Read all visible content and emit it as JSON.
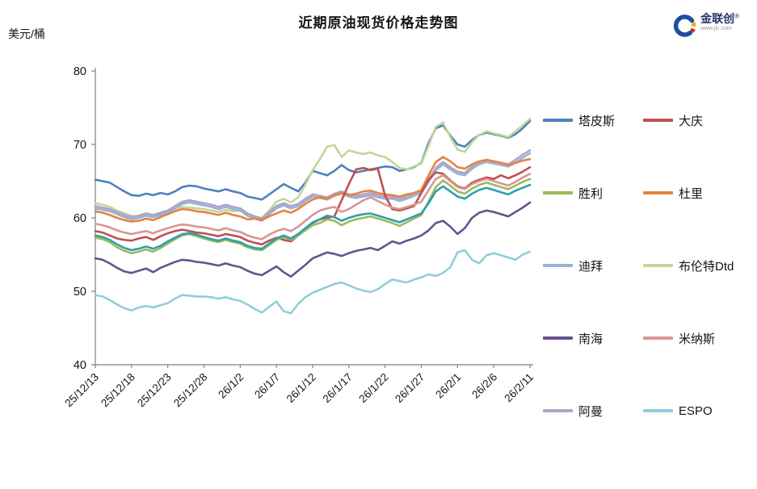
{
  "title": "近期原油现货价格走势图",
  "y_unit": "美元/桶",
  "logo": {
    "brand": "金联创",
    "reg": "®",
    "url": "www.jlc.com"
  },
  "chart_data": {
    "type": "line",
    "title": "近期原油现货价格走势图",
    "ylabel": "美元/桶",
    "ylim": [
      40,
      80
    ],
    "y_ticks": [
      80,
      70,
      60,
      50,
      40
    ],
    "grid": false,
    "legend_position": "right",
    "x_tick_labels": [
      "25/12/13",
      "25/12/18",
      "25/12/23",
      "25/12/28",
      "26/1/2",
      "26/1/7",
      "26/1/12",
      "26/1/17",
      "26/1/22",
      "26/1/27",
      "26/2/1",
      "26/2/6",
      "26/2/11"
    ],
    "x_tick_interval_days": 5,
    "x_daily_points": 61,
    "legend": [
      "塔皮斯",
      "大庆",
      "胜利",
      "杜里",
      "迪拜",
      "布伦特Dtd",
      "南海",
      "米纳斯",
      "阿曼",
      "ESPO"
    ],
    "series": [
      {
        "id": "tapis",
        "name": "塔皮斯",
        "color": "#4F81BD",
        "in_legend": true,
        "values": [
          65.2,
          65.0,
          64.8,
          64.2,
          63.6,
          63.1,
          63.0,
          63.3,
          63.1,
          63.4,
          63.2,
          63.6,
          64.2,
          64.4,
          64.3,
          64.0,
          63.8,
          63.6,
          63.9,
          63.6,
          63.4,
          62.9,
          62.7,
          62.5,
          63.2,
          63.9,
          64.6,
          64.1,
          63.6,
          64.8,
          66.4,
          66.1,
          65.8,
          66.4,
          67.2,
          66.5,
          66.2,
          66.4,
          66.6,
          66.8,
          67.0,
          66.9,
          66.4,
          66.6,
          66.9,
          67.5,
          70.2,
          72.2,
          72.6,
          71.2,
          70.0,
          69.7,
          70.6,
          71.3,
          71.6,
          71.4,
          71.2,
          70.9,
          71.4,
          72.2,
          73.2
        ]
      },
      {
        "id": "brent-dtd",
        "name": "布伦特Dtd",
        "color": "#C3D69B",
        "in_legend": true,
        "values": [
          62.0,
          61.8,
          61.5,
          61.0,
          60.6,
          60.3,
          60.2,
          60.4,
          60.3,
          60.6,
          60.9,
          61.2,
          61.5,
          61.4,
          61.3,
          61.2,
          61.0,
          60.8,
          61.1,
          60.9,
          61.0,
          60.5,
          60.2,
          60.0,
          61.0,
          62.2,
          62.6,
          62.1,
          62.8,
          64.5,
          66.5,
          68.0,
          69.7,
          69.9,
          68.3,
          69.2,
          68.9,
          68.7,
          68.9,
          68.5,
          68.3,
          67.6,
          66.8,
          66.6,
          67.0,
          67.4,
          69.8,
          72.4,
          73.0,
          71.0,
          69.3,
          69.0,
          70.3,
          71.3,
          71.8,
          71.5,
          71.3,
          71.0,
          71.8,
          72.6,
          73.5
        ]
      },
      {
        "id": "oman",
        "name": "阿曼",
        "color": "#B3A2C7",
        "in_legend": true,
        "values": [
          61.6,
          61.4,
          61.2,
          60.8,
          60.4,
          60.1,
          60.3,
          60.6,
          60.4,
          60.7,
          61.0,
          61.6,
          62.2,
          62.4,
          62.2,
          62.0,
          61.8,
          61.5,
          61.8,
          61.5,
          61.3,
          60.6,
          60.2,
          59.9,
          60.8,
          61.6,
          62.0,
          61.6,
          61.9,
          62.6,
          63.2,
          63.0,
          62.8,
          63.3,
          63.6,
          63.2,
          63.0,
          63.2,
          63.4,
          63.1,
          62.9,
          62.9,
          62.6,
          62.9,
          63.3,
          63.7,
          65.2,
          66.8,
          67.6,
          66.9,
          66.3,
          66.1,
          67.0,
          67.6,
          67.9,
          67.7,
          67.5,
          67.3,
          67.9,
          68.6,
          69.2
        ]
      },
      {
        "id": "dubai",
        "name": "迪拜",
        "color": "#95B3D7",
        "in_legend": true,
        "values": [
          61.3,
          61.1,
          60.9,
          60.5,
          60.1,
          59.8,
          60.0,
          60.3,
          60.1,
          60.4,
          60.7,
          61.3,
          61.9,
          62.1,
          61.9,
          61.7,
          61.5,
          61.2,
          61.5,
          61.2,
          61.0,
          60.3,
          59.9,
          59.6,
          60.5,
          61.3,
          61.7,
          61.3,
          61.6,
          62.3,
          62.9,
          62.7,
          62.5,
          63.0,
          63.3,
          62.9,
          62.7,
          62.9,
          63.1,
          62.8,
          62.6,
          62.6,
          62.3,
          62.6,
          63.0,
          63.4,
          64.9,
          66.5,
          67.3,
          66.6,
          66.0,
          65.8,
          66.7,
          67.3,
          67.6,
          67.4,
          67.2,
          67.0,
          67.5,
          68.2,
          68.8
        ]
      },
      {
        "id": "duri",
        "name": "杜里",
        "color": "#E8823E",
        "in_legend": true,
        "values": [
          60.9,
          60.7,
          60.4,
          60.0,
          59.7,
          59.5,
          59.6,
          59.9,
          59.7,
          60.1,
          60.5,
          60.9,
          61.2,
          61.1,
          60.9,
          60.8,
          60.6,
          60.4,
          60.7,
          60.4,
          60.2,
          59.8,
          59.9,
          59.7,
          60.2,
          60.6,
          61.0,
          60.7,
          61.2,
          61.9,
          62.5,
          62.8,
          62.6,
          63.1,
          63.4,
          63.1,
          63.3,
          63.6,
          63.7,
          63.4,
          63.2,
          63.1,
          62.9,
          63.2,
          63.4,
          63.8,
          65.8,
          67.6,
          68.3,
          67.7,
          66.9,
          66.7,
          67.3,
          67.7,
          67.9,
          67.7,
          67.5,
          67.2,
          67.5,
          67.8,
          68.0
        ]
      },
      {
        "id": "daqing",
        "name": "大庆",
        "color": "#C0504D",
        "in_legend": true,
        "values": [
          58.2,
          58.0,
          57.6,
          57.2,
          57.0,
          56.9,
          57.2,
          57.4,
          57.0,
          57.5,
          57.9,
          58.2,
          58.4,
          58.2,
          58.0,
          57.9,
          57.7,
          57.5,
          57.8,
          57.6,
          57.4,
          56.9,
          56.6,
          56.4,
          56.9,
          57.3,
          57.0,
          56.8,
          57.6,
          58.4,
          59.3,
          59.8,
          60.0,
          60.2,
          62.4,
          64.6,
          66.6,
          66.8,
          66.5,
          66.7,
          63.0,
          61.2,
          61.0,
          61.3,
          61.6,
          63.4,
          65.2,
          66.2,
          66.0,
          65.1,
          64.3,
          64.0,
          64.8,
          65.2,
          65.5,
          65.3,
          65.8,
          65.4,
          65.8,
          66.3,
          66.9
        ]
      },
      {
        "id": "minas",
        "name": "米纳斯",
        "color": "#D99694",
        "in_legend": true,
        "values": [
          59.2,
          59.0,
          58.7,
          58.3,
          58.0,
          57.8,
          58.0,
          58.2,
          57.9,
          58.3,
          58.6,
          58.9,
          59.1,
          59.0,
          58.8,
          58.7,
          58.5,
          58.3,
          58.6,
          58.3,
          58.1,
          57.6,
          57.3,
          57.1,
          57.7,
          58.2,
          58.5,
          58.2,
          58.8,
          59.6,
          60.4,
          61.0,
          61.3,
          61.5,
          60.8,
          61.2,
          61.8,
          62.4,
          62.8,
          62.3,
          61.8,
          61.4,
          61.2,
          61.5,
          61.8,
          62.2,
          63.8,
          65.3,
          65.8,
          65.0,
          64.2,
          63.9,
          64.6,
          65.0,
          65.3,
          65.0,
          64.7,
          64.4,
          64.9,
          65.5,
          66.0
        ]
      },
      {
        "id": "shengli",
        "name": "胜利",
        "color": "#9BBB59",
        "in_legend": true,
        "values": [
          57.3,
          57.1,
          56.7,
          56.0,
          55.5,
          55.2,
          55.4,
          55.7,
          55.4,
          55.9,
          56.5,
          57.1,
          57.6,
          57.8,
          57.5,
          57.2,
          56.9,
          56.7,
          57.0,
          56.7,
          56.5,
          56.0,
          55.7,
          55.6,
          56.3,
          57.0,
          57.4,
          57.0,
          57.6,
          58.3,
          59.0,
          59.3,
          59.8,
          59.6,
          59.0,
          59.5,
          59.8,
          60.0,
          60.2,
          59.9,
          59.6,
          59.3,
          58.9,
          59.4,
          59.9,
          60.4,
          62.2,
          64.2,
          65.1,
          64.4,
          63.6,
          63.3,
          64.0,
          64.5,
          64.8,
          64.5,
          64.2,
          63.9,
          64.4,
          64.9,
          65.3
        ]
      },
      {
        "id": "unlabeled-teal",
        "name": "",
        "color": "#2E9FB0",
        "in_legend": false,
        "values": [
          57.6,
          57.4,
          57.0,
          56.4,
          55.9,
          55.6,
          55.8,
          56.1,
          55.8,
          56.2,
          56.8,
          57.3,
          57.8,
          57.9,
          57.7,
          57.4,
          57.1,
          56.9,
          57.2,
          56.9,
          56.7,
          56.2,
          55.9,
          55.8,
          56.5,
          57.2,
          57.6,
          57.2,
          57.8,
          58.6,
          59.4,
          59.8,
          60.3,
          60.1,
          59.6,
          60.0,
          60.3,
          60.5,
          60.6,
          60.3,
          60.0,
          59.7,
          59.4,
          59.8,
          60.2,
          60.6,
          62.0,
          63.6,
          64.3,
          63.6,
          62.9,
          62.6,
          63.3,
          63.8,
          64.1,
          63.8,
          63.5,
          63.2,
          63.7,
          64.1,
          64.5
        ]
      },
      {
        "id": "nanhai",
        "name": "南海",
        "color": "#69518F",
        "in_legend": true,
        "values": [
          54.5,
          54.3,
          53.8,
          53.2,
          52.7,
          52.5,
          52.8,
          53.1,
          52.6,
          53.2,
          53.6,
          54.0,
          54.3,
          54.2,
          54.0,
          53.9,
          53.7,
          53.5,
          53.8,
          53.5,
          53.3,
          52.8,
          52.4,
          52.2,
          52.8,
          53.4,
          52.6,
          52.0,
          52.8,
          53.6,
          54.5,
          54.9,
          55.3,
          55.1,
          54.8,
          55.2,
          55.5,
          55.7,
          55.9,
          55.6,
          56.2,
          56.8,
          56.5,
          56.9,
          57.2,
          57.6,
          58.3,
          59.3,
          59.6,
          58.8,
          57.8,
          58.6,
          60.0,
          60.7,
          61.0,
          60.8,
          60.5,
          60.2,
          60.8,
          61.4,
          62.1
        ]
      },
      {
        "id": "espo",
        "name": "ESPO",
        "color": "#92CDDC",
        "in_legend": true,
        "values": [
          49.5,
          49.3,
          48.8,
          48.2,
          47.7,
          47.4,
          47.8,
          48.0,
          47.8,
          48.1,
          48.4,
          49.0,
          49.5,
          49.4,
          49.3,
          49.3,
          49.2,
          49.0,
          49.2,
          48.9,
          48.7,
          48.2,
          47.6,
          47.1,
          47.9,
          48.6,
          47.3,
          47.0,
          48.3,
          49.2,
          49.8,
          50.2,
          50.6,
          51.0,
          51.2,
          50.8,
          50.4,
          50.1,
          49.9,
          50.3,
          51.0,
          51.6,
          51.4,
          51.2,
          51.6,
          51.9,
          52.3,
          52.1,
          52.5,
          53.3,
          55.3,
          55.6,
          54.3,
          53.8,
          54.9,
          55.2,
          54.9,
          54.6,
          54.3,
          55.0,
          55.4
        ]
      }
    ]
  },
  "axis": {
    "color": "#808080"
  }
}
